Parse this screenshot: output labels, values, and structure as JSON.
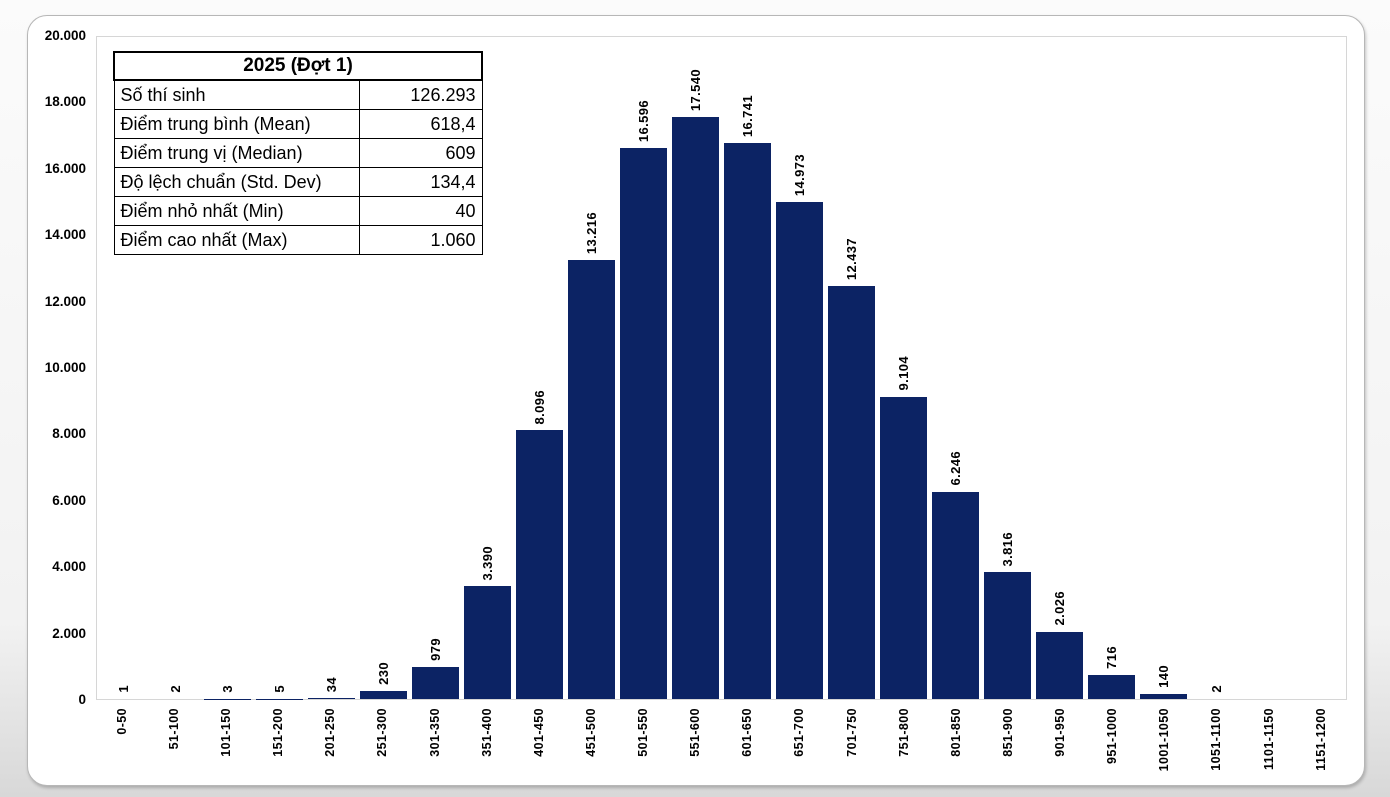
{
  "stats_table": {
    "title": "2025 (Đợt 1)",
    "rows": [
      {
        "label": "Số thí sinh",
        "value": "126.293"
      },
      {
        "label": "Điểm trung bình (Mean)",
        "value": "618,4"
      },
      {
        "label": "Điểm trung vị (Median)",
        "value": "609"
      },
      {
        "label": "Độ lệch chuẩn (Std. Dev)",
        "value": "134,4"
      },
      {
        "label": "Điểm nhỏ nhất (Min)",
        "value": "40"
      },
      {
        "label": "Điểm cao nhất (Max)",
        "value": "1.060"
      }
    ]
  },
  "chart_data": {
    "type": "bar",
    "title": "",
    "xlabel": "",
    "ylabel": "",
    "categories": [
      "0-50",
      "51-100",
      "101-150",
      "151-200",
      "201-250",
      "251-300",
      "301-350",
      "351-400",
      "401-450",
      "451-500",
      "501-550",
      "551-600",
      "601-650",
      "651-700",
      "701-750",
      "751-800",
      "801-850",
      "851-900",
      "901-950",
      "951-1000",
      "1001-1050",
      "1051-1100",
      "1101-1150",
      "1151-1200"
    ],
    "values": [
      1,
      2,
      3,
      5,
      34,
      230,
      979,
      3390,
      8096,
      13216,
      16596,
      17540,
      16741,
      14973,
      12437,
      9104,
      6246,
      3816,
      2026,
      716,
      140,
      2,
      null,
      null
    ],
    "value_labels": [
      "1",
      "2",
      "3",
      "5",
      "34",
      "230",
      "979",
      "3.390",
      "8.096",
      "13.216",
      "16.596",
      "17.540",
      "16.741",
      "14.973",
      "12.437",
      "9.104",
      "6.246",
      "3.816",
      "2.026",
      "716",
      "140",
      "2",
      "",
      ""
    ],
    "ylim": [
      0,
      20000
    ],
    "ytick_step": 2000,
    "ytick_labels": [
      "0",
      "2.000",
      "4.000",
      "6.000",
      "8.000",
      "10.000",
      "12.000",
      "14.000",
      "16.000",
      "18.000",
      "20.000"
    ],
    "grid": false,
    "legend": null,
    "bar_color": "#0c2364",
    "data_label_rotation_deg": 90,
    "xtick_rotation_deg": 90
  }
}
